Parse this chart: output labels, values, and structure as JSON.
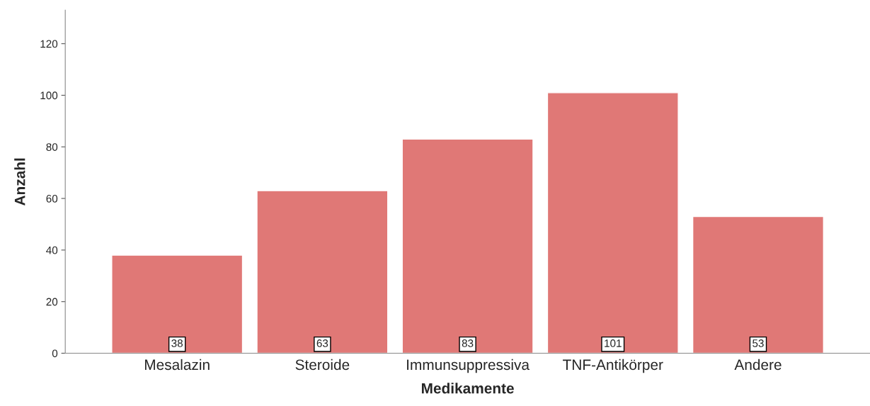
{
  "chart_data": {
    "type": "bar",
    "xlabel": "Medikamente",
    "ylabel": "Anzahl",
    "categories": [
      "Mesalazin",
      "Steroide",
      "Immunsuppressiva",
      "TNF-Antikörper",
      "Andere"
    ],
    "values": [
      38,
      63,
      83,
      101,
      53
    ],
    "color": "#e07876",
    "ylim": [
      0,
      133
    ],
    "yticks": [
      0,
      20,
      40,
      60,
      80,
      100,
      120
    ],
    "grid": false,
    "data_labels": true
  }
}
